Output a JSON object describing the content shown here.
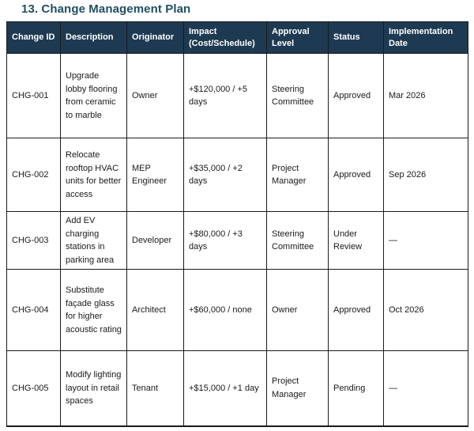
{
  "page": {
    "title": "13. Change Management Plan"
  },
  "colors": {
    "title_color": "#1f4e63",
    "header_bg": "#1e3a52",
    "header_text": "#ffffff",
    "border_color": "#1a1a1a",
    "body_text": "#1a1a1a",
    "page_bg": "#ffffff"
  },
  "table": {
    "columns": [
      "Change ID",
      "Description",
      "Originator",
      "Impact (Cost/Schedule)",
      "Approval Level",
      "Status",
      "Implementation Date"
    ],
    "rows": [
      {
        "change_id": "CHG-001",
        "description": "Upgrade lobby flooring from ceramic to marble",
        "originator": "Owner",
        "impact": "+$120,000 / +5 days",
        "approval_level": "Steering Committee",
        "status": "Approved",
        "implementation_date": "Mar 2026"
      },
      {
        "change_id": "CHG-002",
        "description": "Relocate rooftop HVAC units for better access",
        "originator": "MEP Engineer",
        "impact": "+$35,000 / +2 days",
        "approval_level": "Project Manager",
        "status": "Approved",
        "implementation_date": "Sep 2026"
      },
      {
        "change_id": "CHG-003",
        "description": "Add EV charging stations in parking area",
        "originator": "Developer",
        "impact": "+$80,000 / +3 days",
        "approval_level": "Steering Committee",
        "status": "Under Review",
        "implementation_date": "—"
      },
      {
        "change_id": "CHG-004",
        "description": "Substitute façade glass for higher acoustic rating",
        "originator": "Architect",
        "impact": "+$60,000 / none",
        "approval_level": "Owner",
        "status": "Approved",
        "implementation_date": "Oct 2026"
      },
      {
        "change_id": "CHG-005",
        "description": "Modify lighting layout in retail spaces",
        "originator": "Tenant",
        "impact": "+$15,000 / +1 day",
        "approval_level": "Project Manager",
        "status": "Pending",
        "implementation_date": "—"
      }
    ]
  }
}
